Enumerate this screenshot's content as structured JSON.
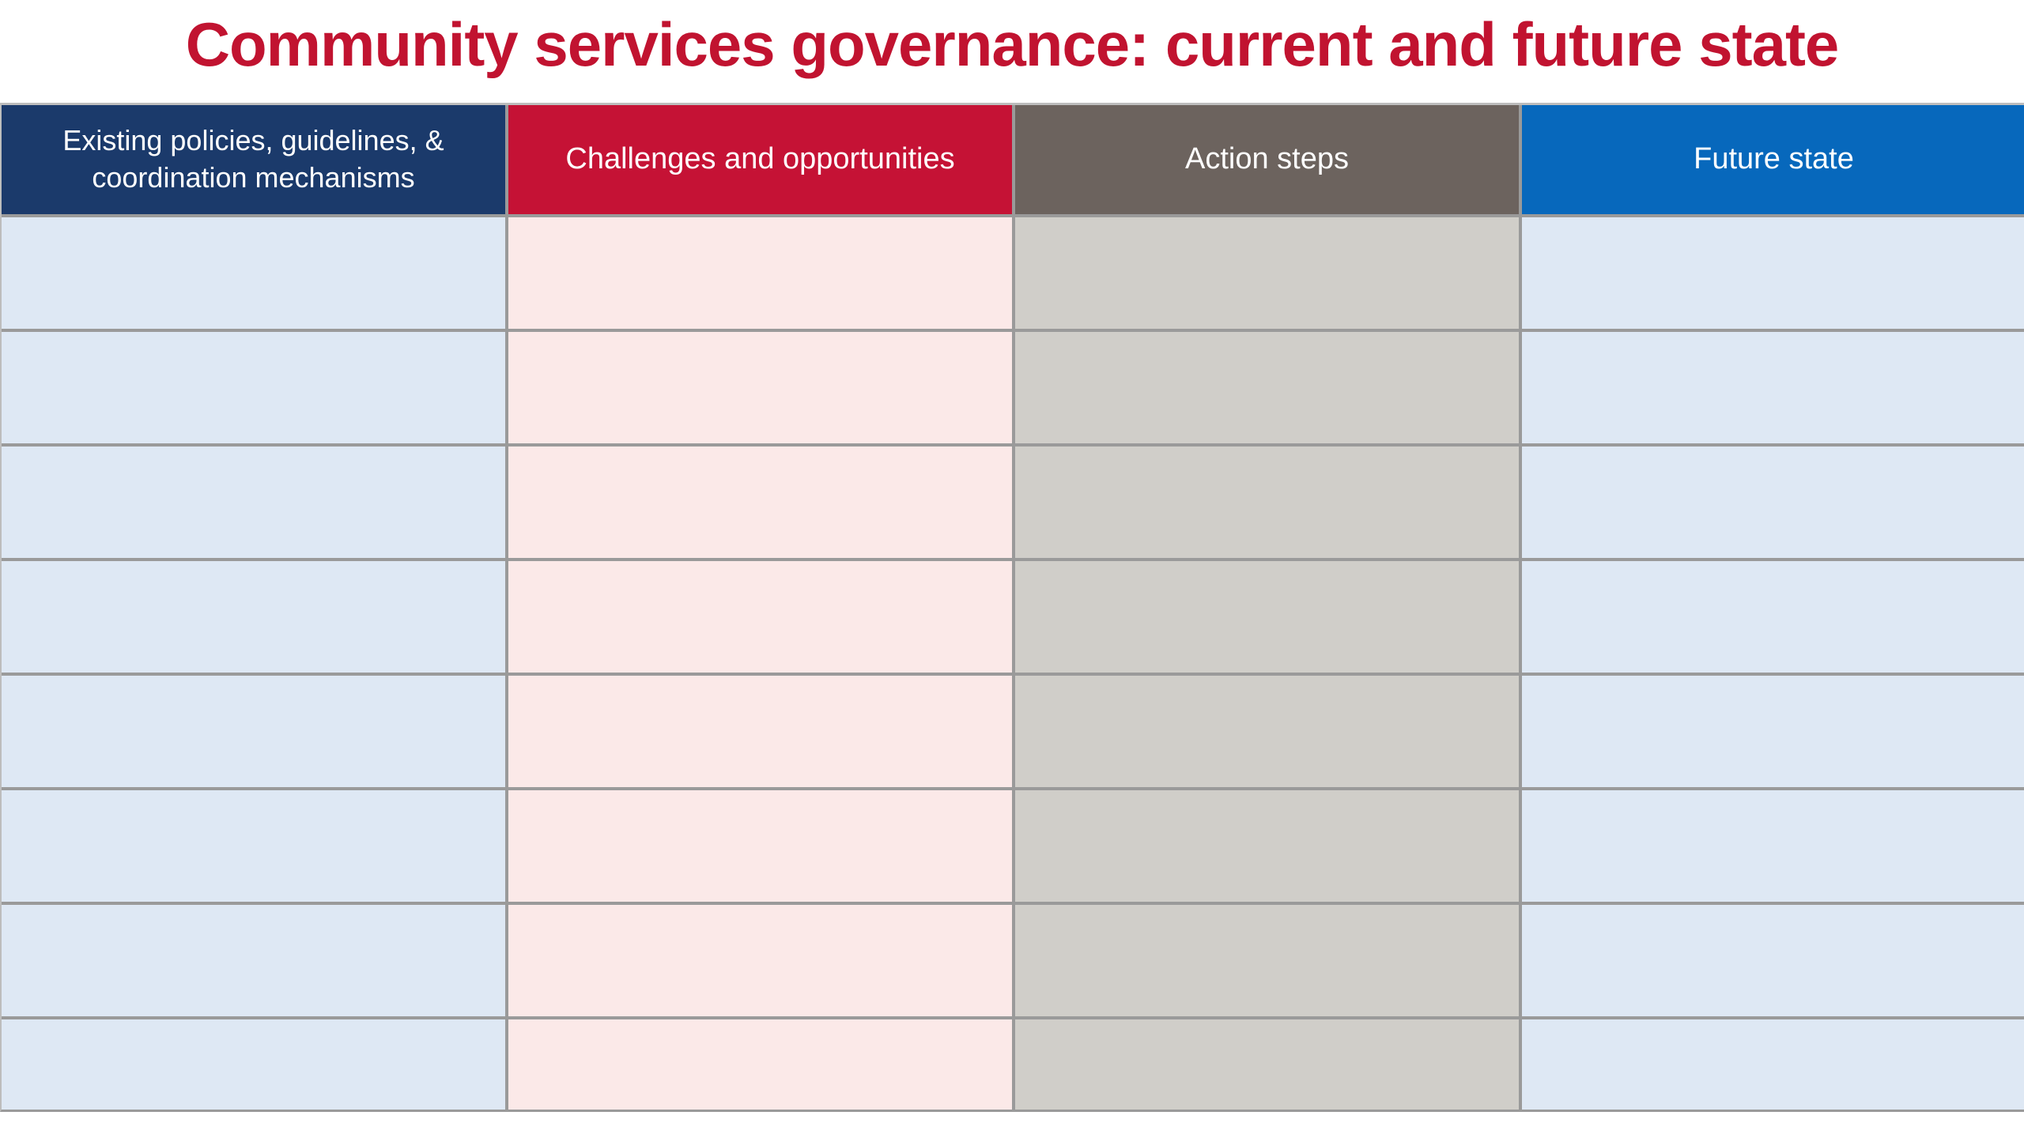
{
  "title": {
    "text": "Community services governance: current and future state",
    "color": "#C11330"
  },
  "table": {
    "row_count": 8,
    "grid_line_color": "#9A9A9A",
    "page_background": "#FFFFFF",
    "columns": [
      {
        "header": "Existing policies, guidelines, & coordination mechanisms",
        "header_bg": "#1B3A6B",
        "header_text_color": "#FFFFFF",
        "cell_bg": "#DEE8F4"
      },
      {
        "header": "Challenges and opportunities",
        "header_bg": "#C51235",
        "header_text_color": "#FFFFFF",
        "cell_bg": "#FBE9E8"
      },
      {
        "header": "Action steps",
        "header_bg": "#6C635E",
        "header_text_color": "#FFFFFF",
        "cell_bg": "#D0CEC9"
      },
      {
        "header": "Future state",
        "header_bg": "#0768BC",
        "header_text_color": "#FFFFFF",
        "cell_bg": "#DEE8F4"
      }
    ],
    "rows": [
      [
        "",
        "",
        "",
        ""
      ],
      [
        "",
        "",
        "",
        ""
      ],
      [
        "",
        "",
        "",
        ""
      ],
      [
        "",
        "",
        "",
        ""
      ],
      [
        "",
        "",
        "",
        ""
      ],
      [
        "",
        "",
        "",
        ""
      ],
      [
        "",
        "",
        "",
        ""
      ],
      [
        "",
        "",
        "",
        ""
      ]
    ]
  }
}
